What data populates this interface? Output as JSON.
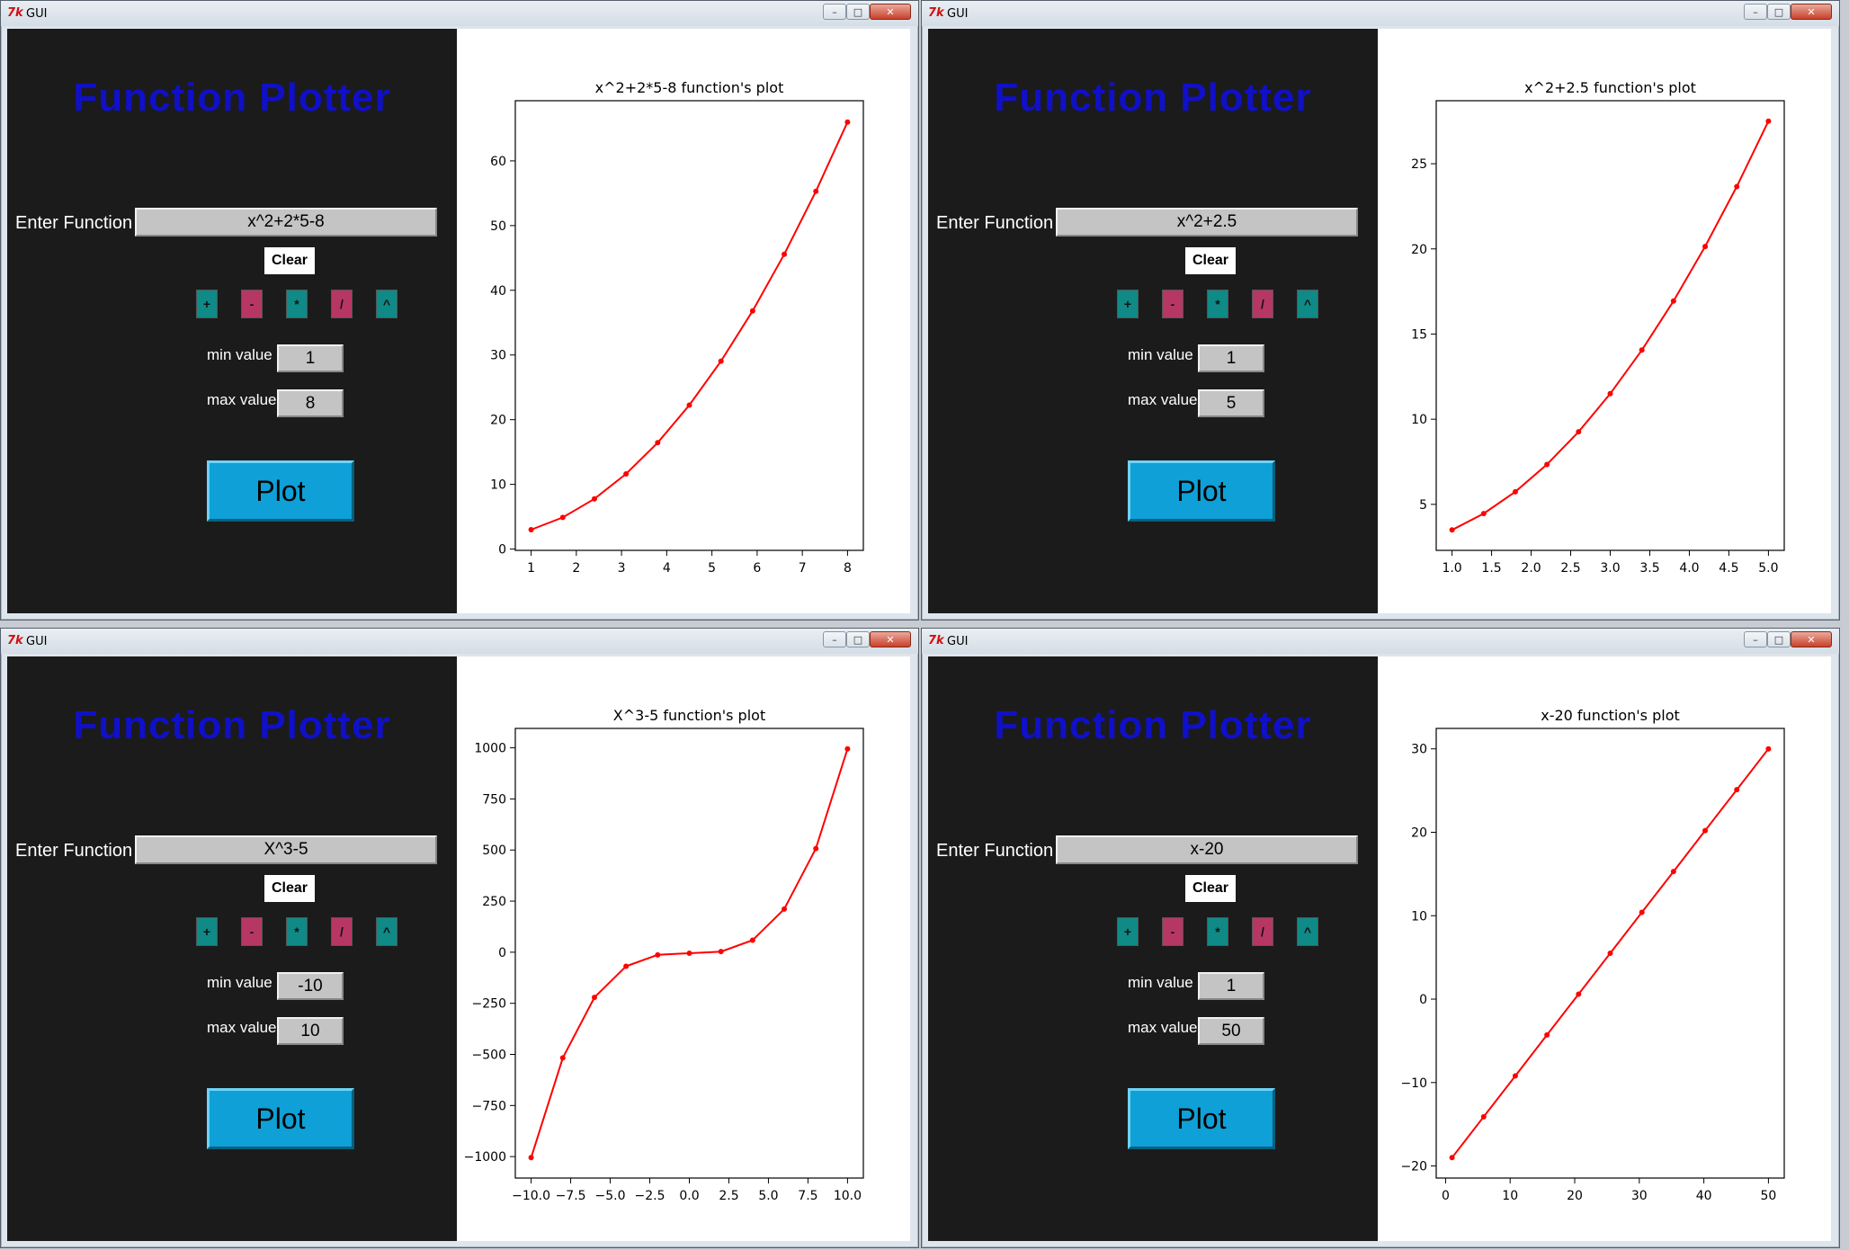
{
  "windows": [
    {
      "title": "GUI",
      "app_title": "Function Plotter",
      "function_label": "Enter Function",
      "function_value": "x^2+2*5-8",
      "clear_label": "Clear",
      "operators": [
        "+",
        "-",
        "*",
        "/",
        "^"
      ],
      "min_label": "min value",
      "min_value": "1",
      "max_label": "max value",
      "max_value": "8",
      "plot_label": "Plot",
      "chart_data": {
        "type": "line",
        "title": "x^2+2*5-8  function's plot",
        "color": "#ff0000",
        "x": [
          1,
          1.7,
          2.4,
          3.1,
          3.8,
          4.5,
          5.2,
          5.9,
          6.6,
          7.3,
          8
        ],
        "y": [
          3,
          4.89,
          7.76,
          11.61,
          16.44,
          22.25,
          29.04,
          36.81,
          45.56,
          55.29,
          66
        ],
        "xlim": [
          0.65,
          8.35
        ],
        "ylim": [
          -0.2,
          69.3
        ],
        "xticks": [
          1,
          2,
          3,
          4,
          5,
          6,
          7,
          8
        ],
        "xtick_labels": [
          "1",
          "2",
          "3",
          "4",
          "5",
          "6",
          "7",
          "8"
        ],
        "yticks": [
          0,
          10,
          20,
          30,
          40,
          50,
          60
        ],
        "ytick_labels": [
          "0",
          "10",
          "20",
          "30",
          "40",
          "50",
          "60"
        ]
      }
    },
    {
      "title": "GUI",
      "app_title": "Function Plotter",
      "function_label": "Enter Function",
      "function_value": "x^2+2.5",
      "clear_label": "Clear",
      "operators": [
        "+",
        "-",
        "*",
        "/",
        "^"
      ],
      "min_label": "min value",
      "min_value": "1",
      "max_label": "max value",
      "max_value": "5",
      "plot_label": "Plot",
      "chart_data": {
        "type": "line",
        "title": "x^2+2.5  function's plot",
        "color": "#ff0000",
        "x": [
          1,
          1.4,
          1.8,
          2.2,
          2.6,
          3.0,
          3.4,
          3.8,
          4.2,
          4.6,
          5
        ],
        "y": [
          3.5,
          4.46,
          5.74,
          7.34,
          9.26,
          11.5,
          14.06,
          16.94,
          20.14,
          23.66,
          27.5
        ],
        "xlim": [
          0.8,
          5.2
        ],
        "ylim": [
          2.3,
          28.7
        ],
        "xticks": [
          1,
          1.5,
          2,
          2.5,
          3,
          3.5,
          4,
          4.5,
          5
        ],
        "xtick_labels": [
          "1.0",
          "1.5",
          "2.0",
          "2.5",
          "3.0",
          "3.5",
          "4.0",
          "4.5",
          "5.0"
        ],
        "yticks": [
          5,
          10,
          15,
          20,
          25
        ],
        "ytick_labels": [
          "5",
          "10",
          "15",
          "20",
          "25"
        ]
      }
    },
    {
      "title": "GUI",
      "app_title": "Function Plotter",
      "function_label": "Enter Function",
      "function_value": "X^3-5",
      "clear_label": "Clear",
      "operators": [
        "+",
        "-",
        "*",
        "/",
        "^"
      ],
      "min_label": "min value",
      "min_value": "-10",
      "max_label": "max value",
      "max_value": "10",
      "plot_label": "Plot",
      "chart_data": {
        "type": "line",
        "title": "X^3-5  function's plot",
        "color": "#ff0000",
        "x": [
          -10,
          -8,
          -6,
          -4,
          -2,
          0,
          2,
          4,
          6,
          8,
          10
        ],
        "y": [
          -1005,
          -517,
          -221,
          -69,
          -13,
          -5,
          3,
          59,
          211,
          507,
          995
        ],
        "xlim": [
          -11,
          11
        ],
        "ylim": [
          -1105,
          1095
        ],
        "xticks": [
          -10,
          -7.5,
          -5,
          -2.5,
          0,
          2.5,
          5,
          7.5,
          10
        ],
        "xtick_labels": [
          "−10.0",
          "−7.5",
          "−5.0",
          "−2.5",
          "0.0",
          "2.5",
          "5.0",
          "7.5",
          "10.0"
        ],
        "yticks": [
          -1000,
          -750,
          -500,
          -250,
          0,
          250,
          500,
          750,
          1000
        ],
        "ytick_labels": [
          "−1000",
          "−750",
          "−500",
          "−250",
          "0",
          "250",
          "500",
          "750",
          "1000"
        ]
      }
    },
    {
      "title": "GUI",
      "app_title": "Function Plotter",
      "function_label": "Enter Function",
      "function_value": "x-20",
      "clear_label": "Clear",
      "operators": [
        "+",
        "-",
        "*",
        "/",
        "^"
      ],
      "min_label": "min value",
      "min_value": "1",
      "max_label": "max value",
      "max_value": "50",
      "plot_label": "Plot",
      "chart_data": {
        "type": "line",
        "title": "x-20  function's plot",
        "color": "#ff0000",
        "x": [
          1,
          5.9,
          10.8,
          15.7,
          20.6,
          25.5,
          30.4,
          35.3,
          40.2,
          45.1,
          50
        ],
        "y": [
          -19,
          -14.1,
          -9.2,
          -4.3,
          0.6,
          5.5,
          10.4,
          15.3,
          20.2,
          25.1,
          30
        ],
        "xlim": [
          -1.45,
          52.45
        ],
        "ylim": [
          -21.45,
          32.45
        ],
        "xticks": [
          0,
          10,
          20,
          30,
          40,
          50
        ],
        "xtick_labels": [
          "0",
          "10",
          "20",
          "30",
          "40",
          "50"
        ],
        "yticks": [
          -20,
          -10,
          0,
          10,
          20,
          30
        ],
        "ytick_labels": [
          "−20",
          "−10",
          "0",
          "10",
          "20",
          "30"
        ]
      }
    }
  ]
}
